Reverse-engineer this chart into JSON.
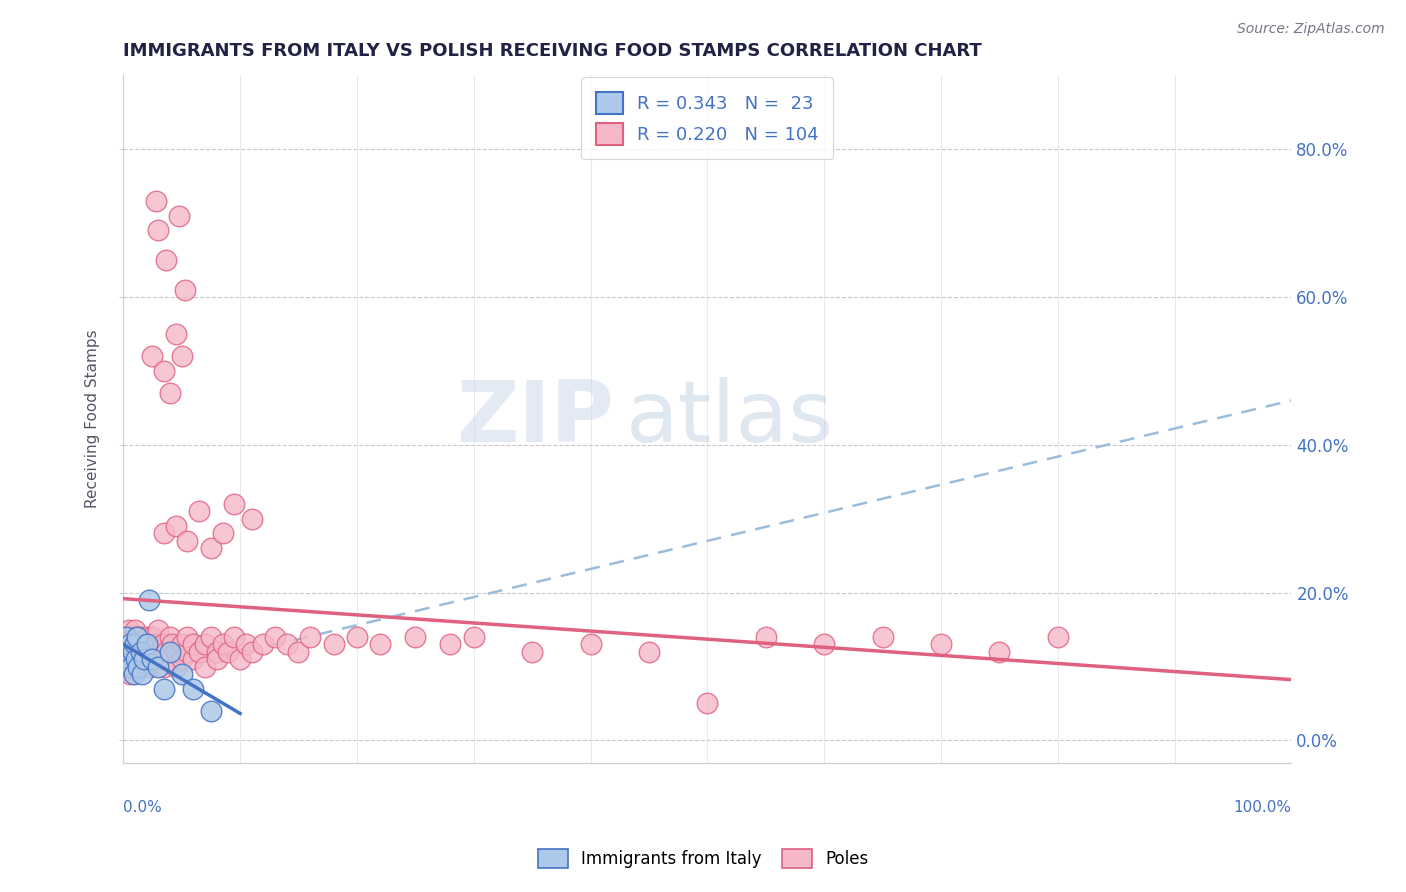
{
  "title": "IMMIGRANTS FROM ITALY VS POLISH RECEIVING FOOD STAMPS CORRELATION CHART",
  "source": "Source: ZipAtlas.com",
  "ylabel": "Receiving Food Stamps",
  "ytick_vals": [
    0,
    20,
    40,
    60,
    80
  ],
  "xlim": [
    0,
    100
  ],
  "ylim": [
    -3,
    90
  ],
  "legend_italy_R": "0.343",
  "legend_italy_N": "23",
  "legend_poles_R": "0.220",
  "legend_poles_N": "104",
  "italy_color": "#adc8e8",
  "italy_line_color": "#4472c4",
  "poles_color": "#f5b8c8",
  "poles_line_color": "#e06080",
  "trend_color": "#9bbcdb",
  "watermark_zip": "ZIP",
  "watermark_atlas": "atlas",
  "title_color": "#222244",
  "label_color": "#4472c4",
  "italy_scatter": [
    [
      0.2,
      14
    ],
    [
      0.4,
      12
    ],
    [
      0.5,
      11
    ],
    [
      0.6,
      13
    ],
    [
      0.7,
      10
    ],
    [
      0.8,
      12
    ],
    [
      0.9,
      9
    ],
    [
      1.0,
      13
    ],
    [
      1.1,
      11
    ],
    [
      1.2,
      14
    ],
    [
      1.3,
      10
    ],
    [
      1.5,
      12
    ],
    [
      1.6,
      9
    ],
    [
      1.8,
      11
    ],
    [
      2.0,
      13
    ],
    [
      2.2,
      19
    ],
    [
      2.5,
      11
    ],
    [
      3.0,
      10
    ],
    [
      3.5,
      7
    ],
    [
      4.0,
      12
    ],
    [
      5.0,
      9
    ],
    [
      6.0,
      7
    ],
    [
      7.5,
      4
    ]
  ],
  "poles_scatter": [
    [
      0.1,
      14
    ],
    [
      0.2,
      13
    ],
    [
      0.2,
      12
    ],
    [
      0.3,
      11
    ],
    [
      0.3,
      13
    ],
    [
      0.4,
      10
    ],
    [
      0.4,
      14
    ],
    [
      0.5,
      12
    ],
    [
      0.5,
      15
    ],
    [
      0.6,
      11
    ],
    [
      0.6,
      9
    ],
    [
      0.7,
      13
    ],
    [
      0.7,
      11
    ],
    [
      0.8,
      14
    ],
    [
      0.8,
      12
    ],
    [
      0.9,
      10
    ],
    [
      0.9,
      13
    ],
    [
      1.0,
      15
    ],
    [
      1.0,
      11
    ],
    [
      1.1,
      12
    ],
    [
      1.1,
      14
    ],
    [
      1.2,
      10
    ],
    [
      1.2,
      13
    ],
    [
      1.3,
      11
    ],
    [
      1.4,
      12
    ],
    [
      1.5,
      14
    ],
    [
      1.5,
      10
    ],
    [
      1.6,
      13
    ],
    [
      1.7,
      11
    ],
    [
      1.8,
      12
    ],
    [
      2.0,
      14
    ],
    [
      2.0,
      11
    ],
    [
      2.2,
      13
    ],
    [
      2.3,
      10
    ],
    [
      2.4,
      12
    ],
    [
      2.5,
      14
    ],
    [
      2.6,
      11
    ],
    [
      2.8,
      13
    ],
    [
      3.0,
      12
    ],
    [
      3.0,
      15
    ],
    [
      3.2,
      11
    ],
    [
      3.4,
      13
    ],
    [
      3.5,
      10
    ],
    [
      3.7,
      12
    ],
    [
      4.0,
      14
    ],
    [
      4.0,
      11
    ],
    [
      4.2,
      13
    ],
    [
      4.5,
      10
    ],
    [
      4.5,
      12
    ],
    [
      5.0,
      13
    ],
    [
      5.0,
      11
    ],
    [
      5.5,
      12
    ],
    [
      5.5,
      14
    ],
    [
      6.0,
      11
    ],
    [
      6.0,
      13
    ],
    [
      6.5,
      12
    ],
    [
      7.0,
      13
    ],
    [
      7.0,
      10
    ],
    [
      7.5,
      14
    ],
    [
      8.0,
      12
    ],
    [
      8.0,
      11
    ],
    [
      8.5,
      13
    ],
    [
      9.0,
      12
    ],
    [
      9.5,
      14
    ],
    [
      10.0,
      11
    ],
    [
      10.5,
      13
    ],
    [
      11.0,
      12
    ],
    [
      12.0,
      13
    ],
    [
      13.0,
      14
    ],
    [
      14.0,
      13
    ],
    [
      15.0,
      12
    ],
    [
      16.0,
      14
    ],
    [
      18.0,
      13
    ],
    [
      20.0,
      14
    ],
    [
      22.0,
      13
    ],
    [
      25.0,
      14
    ],
    [
      28.0,
      13
    ],
    [
      30.0,
      14
    ],
    [
      35.0,
      12
    ],
    [
      40.0,
      13
    ],
    [
      45.0,
      12
    ],
    [
      50.0,
      5
    ],
    [
      55.0,
      14
    ],
    [
      60.0,
      13
    ],
    [
      65.0,
      14
    ],
    [
      70.0,
      13
    ],
    [
      75.0,
      12
    ],
    [
      80.0,
      14
    ],
    [
      3.5,
      28
    ],
    [
      4.5,
      29
    ],
    [
      5.5,
      27
    ],
    [
      6.5,
      31
    ],
    [
      7.5,
      26
    ],
    [
      8.5,
      28
    ],
    [
      9.5,
      32
    ],
    [
      11.0,
      30
    ],
    [
      2.5,
      52
    ],
    [
      3.5,
      50
    ],
    [
      4.0,
      47
    ],
    [
      5.0,
      52
    ],
    [
      4.5,
      55
    ],
    [
      3.0,
      69
    ],
    [
      3.7,
      65
    ],
    [
      4.8,
      71
    ],
    [
      5.3,
      61
    ],
    [
      2.8,
      73
    ]
  ]
}
